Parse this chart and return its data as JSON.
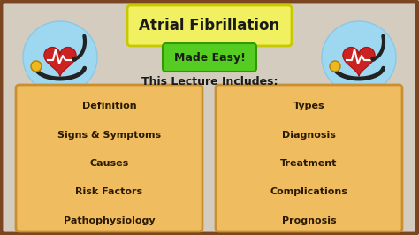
{
  "title": "Atrial Fibrillation",
  "subtitle": "Made Easy!",
  "section_header": "This Lecture Includes:",
  "left_items": [
    "Definition",
    "Signs & Symptoms",
    "Causes",
    "Risk Factors",
    "Pathophysiology"
  ],
  "right_items": [
    "Types",
    "Diagnosis",
    "Treatment",
    "Complications",
    "Prognosis"
  ],
  "bg_color": "#d4cdbf",
  "border_color": "#7a4520",
  "title_box_color": "#f0f060",
  "title_box_border": "#c8c800",
  "subtitle_box_color": "#55cc22",
  "subtitle_box_border": "#339900",
  "content_box_color": "#f0bc60",
  "content_box_border": "#c89030",
  "heart_circle_color": "#9dd8f0",
  "heart_color": "#cc2222",
  "steth_color": "#222222",
  "steth_head_color": "#f0b820",
  "ecg_color": "#ffffff",
  "title_fontsize": 12,
  "subtitle_fontsize": 9,
  "header_fontsize": 9,
  "item_fontsize": 8,
  "text_color": "#1a1a1a",
  "item_color": "#2a1a00"
}
